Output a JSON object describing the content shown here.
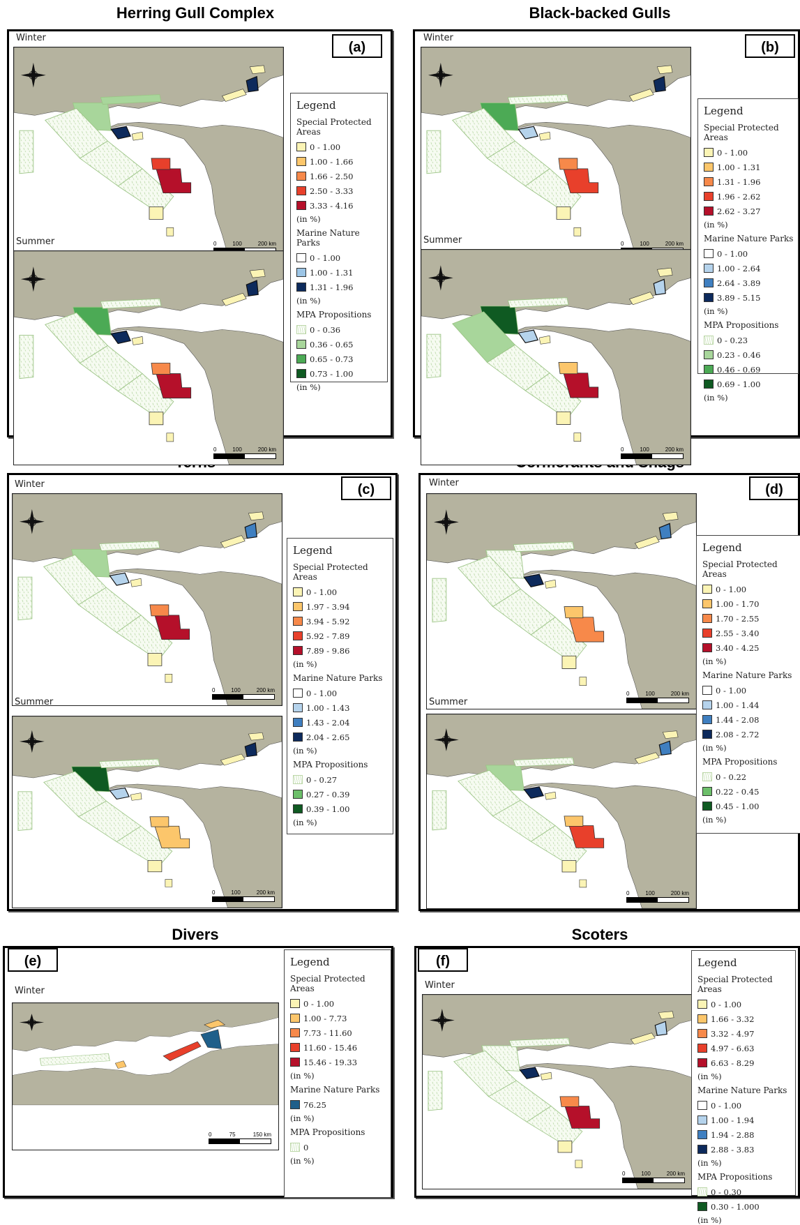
{
  "colors": {
    "land": "#b5b39f",
    "sea": "#ffffff",
    "panel_border": "#000000"
  },
  "icons": {
    "compass": "north-arrow-compass-icon"
  },
  "panels": {
    "a": {
      "title": "Herring Gull Complex",
      "letter": "(a)",
      "seasons": [
        {
          "label": "Winter",
          "scale": [
            "0",
            "100",
            "200 km"
          ]
        },
        {
          "label": "Summer",
          "scale": [
            "0",
            "100",
            "200 km"
          ]
        }
      ],
      "legend": {
        "title": "Legend",
        "groups": [
          {
            "name": "Special Protected Areas",
            "items": [
              {
                "label": "0 - 1.00",
                "color": "#fbf4b5"
              },
              {
                "label": "1.00 - 1.66",
                "color": "#fcc66b"
              },
              {
                "label": "1.66 - 2.50",
                "color": "#f7894a"
              },
              {
                "label": "2.50 - 3.33",
                "color": "#e8402b"
              },
              {
                "label": "3.33 - 4.16",
                "color": "#b5102a"
              }
            ],
            "unit": "(in %)"
          },
          {
            "name": "Marine Nature Parks",
            "items": [
              {
                "label": "0 - 1.00",
                "color": "#ffffff"
              },
              {
                "label": "1.00 - 1.31",
                "color": "#9cc5e6"
              },
              {
                "label": "1.31 - 1.96",
                "color": "#0d2a5c"
              }
            ],
            "unit": "(in %)"
          },
          {
            "name": "MPA Propositions",
            "items": [
              {
                "label": "0 - 0.36",
                "color": "hatch"
              },
              {
                "label": "0.36 - 0.65",
                "color": "#a8d69b"
              },
              {
                "label": "0.65 - 0.73",
                "color": "#4caa55"
              },
              {
                "label": "0.73 - 1.00",
                "color": "#0f5a22"
              }
            ],
            "unit": "(in %)"
          }
        ]
      }
    },
    "b": {
      "title": "Black-backed Gulls",
      "letter": "(b)",
      "seasons": [
        {
          "label": "Winter",
          "scale": [
            "0",
            "100",
            "200 km"
          ]
        },
        {
          "label": "Summer",
          "scale": [
            "0",
            "100",
            "200 km"
          ]
        }
      ],
      "legend": {
        "title": "Legend",
        "groups": [
          {
            "name": "Special Protected Areas",
            "items": [
              {
                "label": "0 - 1.00",
                "color": "#fbf4b5"
              },
              {
                "label": "1.00 - 1.31",
                "color": "#fcc66b"
              },
              {
                "label": "1.31 - 1.96",
                "color": "#f7894a"
              },
              {
                "label": "1.96 - 2.62",
                "color": "#e8402b"
              },
              {
                "label": "2.62 - 3.27",
                "color": "#b5102a"
              }
            ],
            "unit": "(in %)"
          },
          {
            "name": "Marine Nature Parks",
            "items": [
              {
                "label": "0 - 1.00",
                "color": "#ffffff"
              },
              {
                "label": "1.00 - 2.64",
                "color": "#b5d3ec"
              },
              {
                "label": "2.64 - 3.89",
                "color": "#3f7fc0"
              },
              {
                "label": "3.89 - 5.15",
                "color": "#0d2a5c"
              }
            ],
            "unit": "(in %)"
          },
          {
            "name": "MPA Propositions",
            "items": [
              {
                "label": "0 - 0.23",
                "color": "hatch"
              },
              {
                "label": "0.23 - 0.46",
                "color": "#a8d69b"
              },
              {
                "label": "0.46 - 0.69",
                "color": "#4caa55"
              },
              {
                "label": "0.69 - 1.00",
                "color": "#0f5a22"
              }
            ],
            "unit": "(in %)"
          }
        ]
      }
    },
    "c": {
      "title": "Terns",
      "letter": "(c)",
      "seasons": [
        {
          "label": "Winter",
          "scale": [
            "0",
            "100",
            "200 km"
          ]
        },
        {
          "label": "Summer",
          "scale": [
            "0",
            "100",
            "200 km"
          ]
        }
      ],
      "legend": {
        "title": "Legend",
        "groups": [
          {
            "name": "Special Protected Areas",
            "items": [
              {
                "label": "0 - 1.00",
                "color": "#fbf4b5"
              },
              {
                "label": "1.97 - 3.94",
                "color": "#fcc66b"
              },
              {
                "label": "3.94 - 5.92",
                "color": "#f7894a"
              },
              {
                "label": "5.92 - 7.89",
                "color": "#e8402b"
              },
              {
                "label": "7.89 - 9.86",
                "color": "#b5102a"
              }
            ],
            "unit": "(in %)"
          },
          {
            "name": "Marine Nature Parks",
            "items": [
              {
                "label": "0 - 1.00",
                "color": "#ffffff"
              },
              {
                "label": "1.00 - 1.43",
                "color": "#b5d3ec"
              },
              {
                "label": "1.43 - 2.04",
                "color": "#3f7fc0"
              },
              {
                "label": "2.04 - 2.65",
                "color": "#0d2a5c"
              }
            ],
            "unit": "(in %)"
          },
          {
            "name": "MPA Propositions",
            "items": [
              {
                "label": "0 - 0.27",
                "color": "hatch"
              },
              {
                "label": "0.27 - 0.39",
                "color": "#6cbf6a"
              },
              {
                "label": "0.39 - 1.00",
                "color": "#0f5a22"
              }
            ],
            "unit": "(in %)"
          }
        ]
      }
    },
    "d": {
      "title": "Cormorants and Shags",
      "letter": "(d)",
      "seasons": [
        {
          "label": "Winter",
          "scale": [
            "0",
            "100",
            "200 km"
          ]
        },
        {
          "label": "Summer",
          "scale": [
            "0",
            "100",
            "200 km"
          ]
        }
      ],
      "legend": {
        "title": "Legend",
        "groups": [
          {
            "name": "Special Protected Areas",
            "items": [
              {
                "label": "0 - 1.00",
                "color": "#fbf4b5"
              },
              {
                "label": "1.00 - 1.70",
                "color": "#fcc66b"
              },
              {
                "label": "1.70 - 2.55",
                "color": "#f7894a"
              },
              {
                "label": "2.55 - 3.40",
                "color": "#e8402b"
              },
              {
                "label": "3.40 - 4.25",
                "color": "#b5102a"
              }
            ],
            "unit": "(in %)"
          },
          {
            "name": "Marine Nature Parks",
            "items": [
              {
                "label": "0 - 1.00",
                "color": "#ffffff"
              },
              {
                "label": "1.00 - 1.44",
                "color": "#b5d3ec"
              },
              {
                "label": "1.44 - 2.08",
                "color": "#3f7fc0"
              },
              {
                "label": "2.08 - 2.72",
                "color": "#0d2a5c"
              }
            ],
            "unit": "(in %)"
          },
          {
            "name": "MPA Propositions",
            "items": [
              {
                "label": "0 - 0.22",
                "color": "hatch"
              },
              {
                "label": "0.22 - 0.45",
                "color": "#6cbf6a"
              },
              {
                "label": "0.45 - 1.00",
                "color": "#0f5a22"
              }
            ],
            "unit": "(in %)"
          }
        ]
      }
    },
    "e": {
      "title": "Divers",
      "letter": "(e)",
      "seasons": [
        {
          "label": "Winter",
          "scale": [
            "0",
            "75",
            "150 km"
          ]
        }
      ],
      "legend": {
        "title": "Legend",
        "groups": [
          {
            "name": "Special Protected Areas",
            "items": [
              {
                "label": "0 - 1.00",
                "color": "#fbf4b5"
              },
              {
                "label": "1.00 - 7.73",
                "color": "#fcc66b"
              },
              {
                "label": "7.73 - 11.60",
                "color": "#f7894a"
              },
              {
                "label": "11.60 - 15.46",
                "color": "#e8402b"
              },
              {
                "label": "15.46 - 19.33",
                "color": "#b5102a"
              }
            ],
            "unit": "(in %)"
          },
          {
            "name": "Marine Nature Parks",
            "items": [
              {
                "label": "76.25",
                "color": "#1f5f8a"
              }
            ],
            "unit": "(in %)"
          },
          {
            "name": "MPA Propositions",
            "items": [
              {
                "label": "0",
                "color": "hatch"
              }
            ],
            "unit": "(in %)"
          }
        ]
      }
    },
    "f": {
      "title": "Scoters",
      "letter": "(f)",
      "seasons": [
        {
          "label": "Winter",
          "scale": [
            "0",
            "100",
            "200 km"
          ]
        }
      ],
      "legend": {
        "title": "Legend",
        "groups": [
          {
            "name": "Special Protected Areas",
            "items": [
              {
                "label": "0 - 1.00",
                "color": "#fbf4b5"
              },
              {
                "label": "1.66 - 3.32",
                "color": "#fcc66b"
              },
              {
                "label": "3.32 - 4.97",
                "color": "#f7894a"
              },
              {
                "label": "4.97 - 6.63",
                "color": "#e8402b"
              },
              {
                "label": "6.63 - 8.29",
                "color": "#b5102a"
              }
            ],
            "unit": "(in %)"
          },
          {
            "name": "Marine Nature Parks",
            "items": [
              {
                "label": "0 - 1.00",
                "color": "#ffffff"
              },
              {
                "label": "1.00 - 1.94",
                "color": "#b5d3ec"
              },
              {
                "label": "1.94 - 2.88",
                "color": "#3f7fc0"
              },
              {
                "label": "2.88 - 3.83",
                "color": "#0d2a5c"
              }
            ],
            "unit": "(in %)"
          },
          {
            "name": "MPA Propositions",
            "items": [
              {
                "label": "0 - 0.30",
                "color": "hatch"
              },
              {
                "label": "0.30 - 1.000",
                "color": "#0f5a22"
              }
            ],
            "unit": "(in %)"
          }
        ]
      }
    }
  }
}
